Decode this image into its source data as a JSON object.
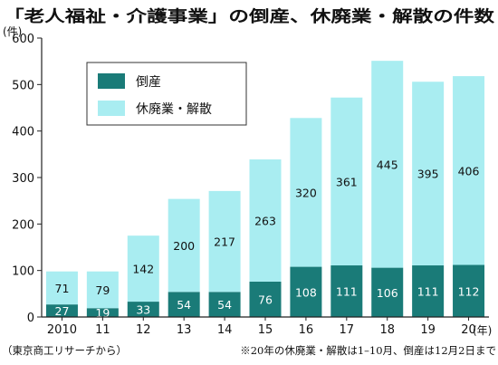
{
  "title": "「老人福祉・介護事業」の倒産、休廃業・解散の件数",
  "source": "（東京商工リサーチから）",
  "note": "※20年の休廃業・解散は1–10月、倒産は12月2日まで",
  "chart_data": {
    "type": "bar",
    "stacked": true,
    "title": "「老人福祉・介護事業」の倒産、休廃業・解散の件数",
    "ylabel": "(件)",
    "xlabel": "(年)",
    "ylim": [
      0,
      600
    ],
    "yticks": [
      "0",
      "100",
      "200",
      "300",
      "400",
      "500",
      "600"
    ],
    "categories": [
      "2010",
      "11",
      "12",
      "13",
      "14",
      "15",
      "16",
      "17",
      "18",
      "19",
      "20"
    ],
    "series": [
      {
        "name": "倒産",
        "color": "#1a7b78",
        "values": [
          27,
          19,
          33,
          54,
          54,
          76,
          108,
          111,
          106,
          111,
          112
        ]
      },
      {
        "name": "休廃業・解散",
        "color": "#a9edf1",
        "values": [
          71,
          79,
          142,
          200,
          217,
          263,
          320,
          361,
          445,
          395,
          406
        ]
      }
    ],
    "legend": "top-left",
    "grid": false
  }
}
